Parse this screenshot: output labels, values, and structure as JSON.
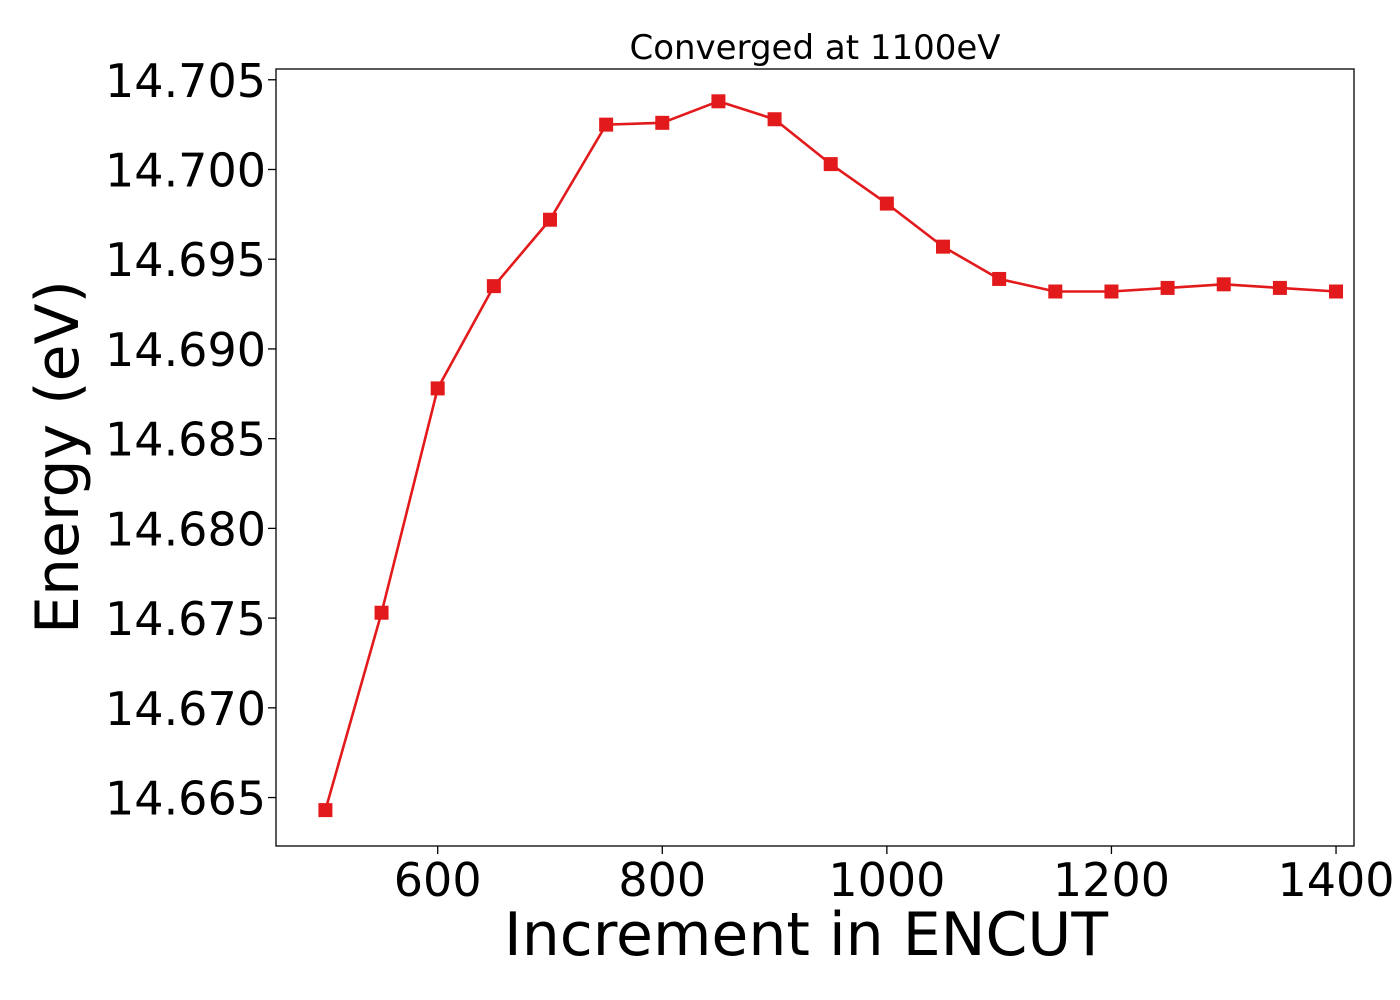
{
  "chart_data": {
    "type": "line",
    "title": "Converged at 1100eV",
    "xlabel": "Increment in ENCUT",
    "ylabel": "Energy (eV)",
    "xlim": [
      456,
      1416
    ],
    "ylim": [
      14.6623,
      14.7056
    ],
    "xticks": [
      600,
      800,
      1000,
      1200,
      1400
    ],
    "yticks": [
      14.665,
      14.67,
      14.675,
      14.68,
      14.685,
      14.69,
      14.695,
      14.7,
      14.705
    ],
    "ytick_decimals": 3,
    "grid": false,
    "series": [
      {
        "color": "#e31a1c",
        "marker": "square",
        "x": [
          500,
          550,
          600,
          650,
          700,
          750,
          800,
          850,
          900,
          950,
          1000,
          1050,
          1100,
          1150,
          1200,
          1250,
          1300,
          1350,
          1400
        ],
        "y": [
          14.6643,
          14.6753,
          14.6878,
          14.6935,
          14.6972,
          14.7025,
          14.7026,
          14.7038,
          14.7028,
          14.7003,
          14.6981,
          14.6957,
          14.6939,
          14.6932,
          14.6932,
          14.6934,
          14.6936,
          14.6934,
          14.6932
        ]
      }
    ]
  }
}
